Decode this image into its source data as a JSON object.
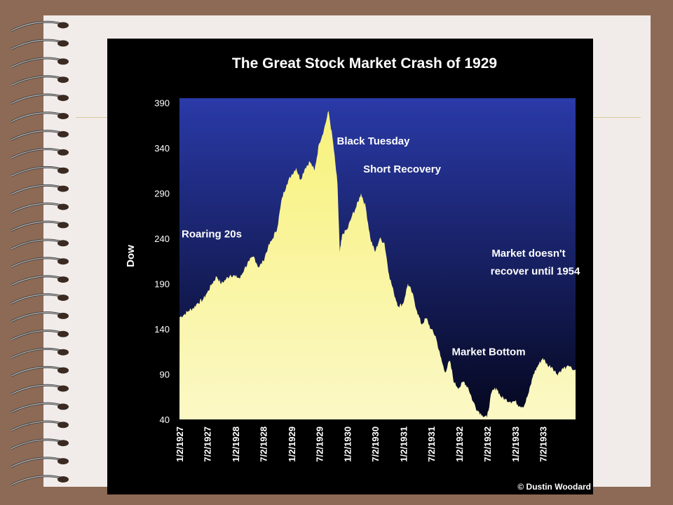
{
  "colors": {
    "page_background": "#8d6a55",
    "paper": "#f1ecea",
    "rule_line": "#d9c99a",
    "panel_background": "#000000",
    "plot_background_top": "#2a3aa8",
    "plot_background_bottom": "#05071e",
    "area_fill_top": "#f8f27a",
    "area_fill_bottom": "#fbf8c6",
    "text": "#ffffff"
  },
  "chart_data": {
    "type": "area",
    "title": "The Great Stock Market Crash of 1929",
    "ylabel": "Dow",
    "xlabel": "",
    "ylim": [
      40,
      395
    ],
    "yticks": [
      390,
      340,
      290,
      240,
      190,
      140,
      90,
      40
    ],
    "xlim": [
      "1927-01-01",
      "1934-01-31"
    ],
    "xtick_labels": [
      "1/2/1927",
      "7/2/1927",
      "1/2/1928",
      "7/2/1928",
      "1/2/1929",
      "7/2/1929",
      "1/2/1930",
      "7/2/1930",
      "1/2/1931",
      "7/2/1931",
      "1/2/1932",
      "7/2/1932",
      "1/2/1933",
      "7/2/1933"
    ],
    "xtick_dates": [
      "1927-01-02",
      "1927-07-02",
      "1928-01-02",
      "1928-07-02",
      "1929-01-02",
      "1929-07-02",
      "1930-01-02",
      "1930-07-02",
      "1931-01-02",
      "1931-07-02",
      "1932-01-02",
      "1932-07-02",
      "1933-01-02",
      "1933-07-02"
    ],
    "grid": false,
    "series": [
      {
        "values": [
          [
            "1927-01-02",
            153
          ],
          [
            "1927-02-01",
            156
          ],
          [
            "1927-03-01",
            160
          ],
          [
            "1927-04-01",
            163
          ],
          [
            "1927-05-01",
            169
          ],
          [
            "1927-06-01",
            172
          ],
          [
            "1927-07-01",
            180
          ],
          [
            "1927-08-01",
            190
          ],
          [
            "1927-09-01",
            198
          ],
          [
            "1927-10-01",
            190
          ],
          [
            "1927-11-01",
            195
          ],
          [
            "1927-12-01",
            200
          ],
          [
            "1928-01-01",
            198
          ],
          [
            "1928-02-01",
            196
          ],
          [
            "1928-03-01",
            207
          ],
          [
            "1928-04-01",
            215
          ],
          [
            "1928-05-01",
            220
          ],
          [
            "1928-06-01",
            208
          ],
          [
            "1928-07-01",
            215
          ],
          [
            "1928-08-01",
            230
          ],
          [
            "1928-09-01",
            240
          ],
          [
            "1928-10-01",
            252
          ],
          [
            "1928-11-01",
            285
          ],
          [
            "1928-12-01",
            300
          ],
          [
            "1929-01-01",
            310
          ],
          [
            "1929-02-01",
            318
          ],
          [
            "1929-03-01",
            305
          ],
          [
            "1929-04-01",
            318
          ],
          [
            "1929-05-01",
            325
          ],
          [
            "1929-06-01",
            315
          ],
          [
            "1929-07-01",
            345
          ],
          [
            "1929-08-01",
            360
          ],
          [
            "1929-09-01",
            381
          ],
          [
            "1929-10-01",
            345
          ],
          [
            "1929-10-29",
            300
          ],
          [
            "1929-11-13",
            225
          ],
          [
            "1929-12-01",
            245
          ],
          [
            "1930-01-01",
            250
          ],
          [
            "1930-02-01",
            265
          ],
          [
            "1930-03-01",
            275
          ],
          [
            "1930-04-01",
            290
          ],
          [
            "1930-05-01",
            275
          ],
          [
            "1930-06-01",
            240
          ],
          [
            "1930-07-01",
            225
          ],
          [
            "1930-08-01",
            240
          ],
          [
            "1930-09-01",
            235
          ],
          [
            "1930-10-01",
            200
          ],
          [
            "1930-11-01",
            180
          ],
          [
            "1930-12-01",
            165
          ],
          [
            "1931-01-01",
            168
          ],
          [
            "1931-02-01",
            190
          ],
          [
            "1931-03-01",
            180
          ],
          [
            "1931-04-01",
            160
          ],
          [
            "1931-05-01",
            145
          ],
          [
            "1931-06-01",
            152
          ],
          [
            "1931-07-01",
            140
          ],
          [
            "1931-08-01",
            132
          ],
          [
            "1931-09-01",
            110
          ],
          [
            "1931-10-01",
            92
          ],
          [
            "1931-11-01",
            105
          ],
          [
            "1931-12-01",
            80
          ],
          [
            "1932-01-01",
            75
          ],
          [
            "1932-02-01",
            82
          ],
          [
            "1932-03-01",
            75
          ],
          [
            "1932-04-01",
            60
          ],
          [
            "1932-05-01",
            50
          ],
          [
            "1932-06-01",
            45
          ],
          [
            "1932-07-01",
            42
          ],
          [
            "1932-08-01",
            70
          ],
          [
            "1932-09-01",
            75
          ],
          [
            "1932-10-01",
            65
          ],
          [
            "1932-11-01",
            62
          ],
          [
            "1932-12-01",
            60
          ],
          [
            "1933-01-01",
            60
          ],
          [
            "1933-02-01",
            55
          ],
          [
            "1933-03-01",
            55
          ],
          [
            "1933-04-01",
            70
          ],
          [
            "1933-05-01",
            90
          ],
          [
            "1933-06-01",
            100
          ],
          [
            "1933-07-01",
            108
          ],
          [
            "1933-08-01",
            100
          ],
          [
            "1933-09-01",
            98
          ],
          [
            "1933-10-01",
            90
          ],
          [
            "1933-11-01",
            95
          ],
          [
            "1933-12-01",
            98
          ],
          [
            "1934-01-31",
            95
          ]
        ]
      }
    ],
    "annotations": [
      {
        "text": "Roaring 20s",
        "date": "1927-01-15",
        "y": 241
      },
      {
        "text": "Black Tuesday",
        "date": "1929-10-25",
        "y": 344
      },
      {
        "text": "Short Recovery",
        "date": "1930-04-15",
        "y": 313
      },
      {
        "text": "Market doesn't",
        "date": "1932-08-01",
        "y": 220
      },
      {
        "text": "recover until 1954",
        "date": "1932-07-25",
        "y": 200
      },
      {
        "text": "Market Bottom",
        "date": "1931-11-15",
        "y": 111
      }
    ],
    "credit": "© Dustin Woodard"
  }
}
